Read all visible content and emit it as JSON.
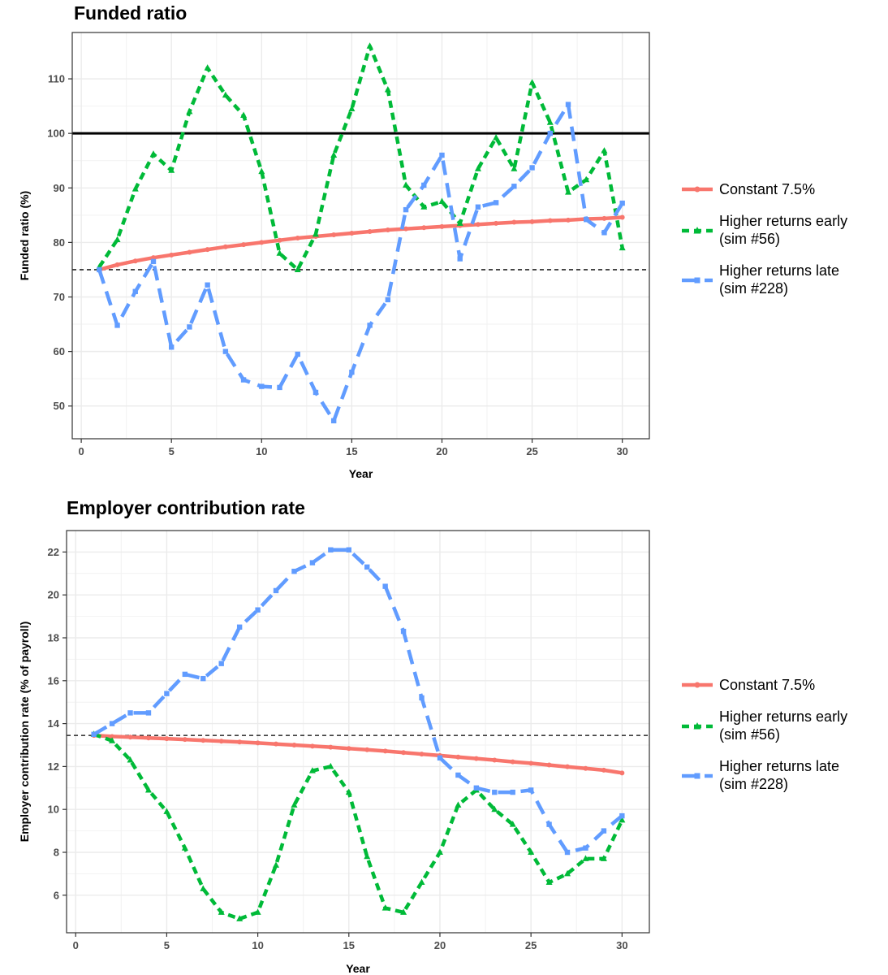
{
  "chart_data": [
    {
      "type": "line",
      "title": "Funded ratio",
      "xlabel": "Year",
      "ylabel": "Funded ratio (%)",
      "xlim": [
        -0.5,
        31.5
      ],
      "ylim": [
        44,
        118.5
      ],
      "xticks": [
        0,
        5,
        10,
        15,
        20,
        25,
        30
      ],
      "yticks": [
        50,
        60,
        70,
        80,
        90,
        100,
        110
      ],
      "grid": true,
      "reference_lines": [
        {
          "y": 100,
          "style": "solid"
        },
        {
          "y": 75,
          "style": "dashed"
        }
      ],
      "x": [
        1,
        2,
        3,
        4,
        5,
        6,
        7,
        8,
        9,
        10,
        11,
        12,
        13,
        14,
        15,
        16,
        17,
        18,
        19,
        20,
        21,
        22,
        23,
        24,
        25,
        26,
        27,
        28,
        29,
        30
      ],
      "series": [
        {
          "name": "Constant 7.5%",
          "color": "#F8766D",
          "dash": "solid",
          "marker": "circle",
          "values": [
            75.0,
            75.9,
            76.6,
            77.2,
            77.7,
            78.2,
            78.7,
            79.2,
            79.6,
            80.0,
            80.4,
            80.8,
            81.1,
            81.4,
            81.7,
            82.0,
            82.3,
            82.5,
            82.7,
            82.9,
            83.1,
            83.3,
            83.5,
            83.7,
            83.8,
            84.0,
            84.1,
            84.3,
            84.4,
            84.6
          ]
        },
        {
          "name": "Higher returns early\n(sim #56)",
          "color": "#00BA38",
          "dash": "dotted",
          "marker": "triangle",
          "values": [
            75.5,
            80.5,
            89.8,
            96.2,
            93.2,
            104.0,
            112.0,
            107.0,
            103.3,
            93.0,
            78.0,
            75.0,
            81.5,
            96.0,
            104.5,
            116.0,
            108.0,
            90.5,
            86.5,
            87.5,
            83.5,
            93.5,
            99.2,
            93.5,
            109.3,
            102.0,
            89.2,
            91.5,
            96.8,
            79.0
          ]
        },
        {
          "name": "Higher returns late\n(sim #228)",
          "color": "#619CFF",
          "dash": "dashed",
          "marker": "square",
          "values": [
            75.0,
            64.8,
            71.0,
            76.5,
            60.8,
            64.5,
            72.2,
            60.0,
            54.8,
            53.6,
            53.4,
            59.5,
            52.5,
            47.3,
            56.2,
            64.8,
            69.5,
            86.0,
            90.5,
            96.0,
            77.0,
            86.5,
            87.3,
            90.3,
            93.7,
            100.0,
            105.3,
            84.2,
            81.8,
            87.2
          ]
        }
      ]
    },
    {
      "type": "line",
      "title": "Employer contribution rate",
      "xlabel": "Year",
      "ylabel": "Employer contribution rate (% of payroll)",
      "xlim": [
        -0.5,
        31.5
      ],
      "ylim": [
        4.25,
        23.0
      ],
      "xticks": [
        0,
        5,
        10,
        15,
        20,
        25,
        30
      ],
      "yticks": [
        6,
        8,
        10,
        12,
        14,
        16,
        18,
        20,
        22
      ],
      "grid": true,
      "reference_lines": [
        {
          "y": 13.45,
          "style": "dashed"
        }
      ],
      "x": [
        1,
        2,
        3,
        4,
        5,
        6,
        7,
        8,
        9,
        10,
        11,
        12,
        13,
        14,
        15,
        16,
        17,
        18,
        19,
        20,
        21,
        22,
        23,
        24,
        25,
        26,
        27,
        28,
        29,
        30
      ],
      "series": [
        {
          "name": "Constant 7.5%",
          "color": "#F8766D",
          "dash": "solid",
          "marker": "circle",
          "values": [
            13.45,
            13.4,
            13.37,
            13.33,
            13.3,
            13.26,
            13.22,
            13.18,
            13.14,
            13.1,
            13.05,
            13.0,
            12.95,
            12.9,
            12.84,
            12.78,
            12.72,
            12.65,
            12.58,
            12.51,
            12.44,
            12.37,
            12.3,
            12.22,
            12.15,
            12.07,
            11.99,
            11.91,
            11.83,
            11.7
          ]
        },
        {
          "name": "Higher returns early\n(sim #56)",
          "color": "#00BA38",
          "dash": "dotted",
          "marker": "triangle",
          "values": [
            13.5,
            13.2,
            12.3,
            10.9,
            9.9,
            8.2,
            6.3,
            5.2,
            4.9,
            5.2,
            7.4,
            10.2,
            11.8,
            12.0,
            10.8,
            7.8,
            5.4,
            5.2,
            6.6,
            8.0,
            10.2,
            10.9,
            10.0,
            9.3,
            8.0,
            6.6,
            7.0,
            7.7,
            7.7,
            9.5
          ]
        },
        {
          "name": "Higher returns late\n(sim #228)",
          "color": "#619CFF",
          "dash": "dashed",
          "marker": "square",
          "values": [
            13.5,
            14.0,
            14.5,
            14.5,
            15.4,
            16.3,
            16.1,
            16.8,
            18.5,
            19.3,
            20.2,
            21.1,
            21.5,
            22.1,
            22.1,
            21.3,
            20.4,
            18.3,
            15.2,
            12.4,
            11.6,
            11.0,
            10.8,
            10.8,
            10.9,
            9.3,
            8.0,
            8.2,
            9.0,
            9.7
          ]
        }
      ]
    }
  ]
}
